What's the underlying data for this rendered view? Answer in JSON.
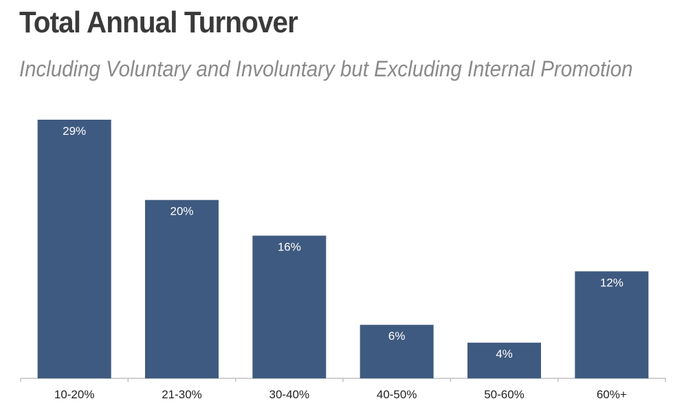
{
  "header": {
    "title": "Total Annual Turnover",
    "subtitle": "Including Voluntary and Involuntary but Excluding Internal Promotion"
  },
  "colors": {
    "bar": "#3f5a80",
    "data_label": "#ffffff",
    "title": "#3a3a3a",
    "subtitle": "#8a8a8a",
    "axis": "#bfbfbf"
  },
  "chart_data": {
    "type": "bar",
    "title": "Total Annual Turnover",
    "subtitle": "Including Voluntary and Involuntary but Excluding Internal Promotion",
    "categories": [
      "10-20%",
      "21-30%",
      "30-40%",
      "40-50%",
      "50-60%",
      "60%+"
    ],
    "values": [
      29,
      20,
      16,
      6,
      4,
      12
    ],
    "value_labels": [
      "29%",
      "20%",
      "16%",
      "6%",
      "4%",
      "12%"
    ],
    "xlabel": "",
    "ylabel": "",
    "ylim": [
      0,
      29
    ],
    "grid": false,
    "legend": "none"
  }
}
